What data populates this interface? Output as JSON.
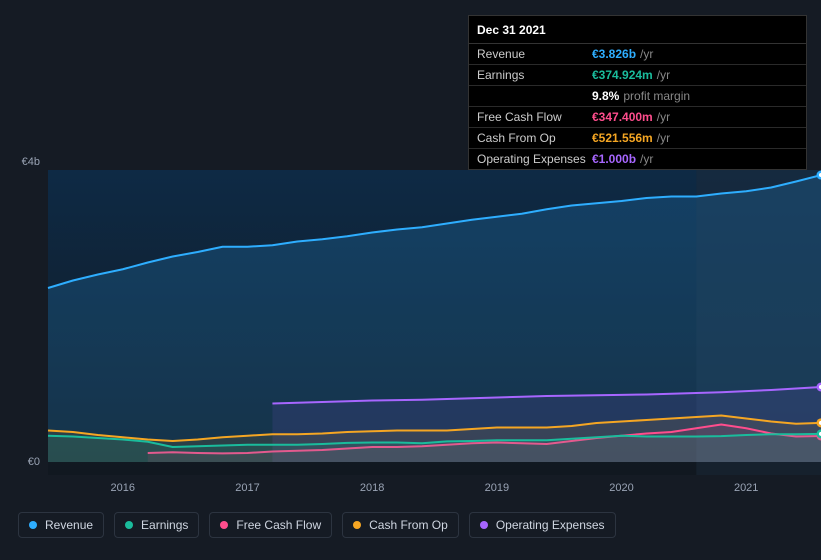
{
  "chart": {
    "type": "area-line",
    "background_color": "#151b24",
    "plot_background_gradient": [
      "#0e2a45",
      "#111820"
    ],
    "highlight_band_color": "#1c2a3a",
    "grid_color": "#242c38",
    "axis_label_color": "#9aa4b5",
    "axis_fontsize": 11,
    "x_categories": [
      "2016",
      "2017",
      "2018",
      "2019",
      "2020",
      "2021"
    ],
    "y_ticks": [
      {
        "value": 0,
        "label": "€0"
      },
      {
        "value": 4000,
        "label": "€4b"
      }
    ],
    "ylim": [
      0,
      4000
    ],
    "series": [
      {
        "name": "Revenue",
        "color": "#2eaeff",
        "fill_opacity": 0.18,
        "line_width": 2,
        "values": [
          2320,
          2420,
          2500,
          2570,
          2660,
          2740,
          2800,
          2870,
          2870,
          2890,
          2940,
          2970,
          3010,
          3060,
          3100,
          3130,
          3180,
          3230,
          3270,
          3310,
          3370,
          3420,
          3450,
          3480,
          3520,
          3540,
          3540,
          3580,
          3610,
          3660,
          3740,
          3826
        ]
      },
      {
        "name": "Earnings",
        "color": "#1abc9c",
        "fill_opacity": 0.12,
        "line_width": 2,
        "values": [
          350,
          340,
          320,
          300,
          270,
          200,
          210,
          220,
          230,
          230,
          230,
          240,
          255,
          260,
          260,
          250,
          275,
          280,
          290,
          290,
          290,
          310,
          330,
          350,
          340,
          340,
          340,
          345,
          360,
          370,
          370,
          375
        ]
      },
      {
        "name": "Free Cash Flow",
        "color": "#ff4d8d",
        "fill_opacity": 0.1,
        "line_width": 2,
        "start_index": 4,
        "values": [
          120,
          130,
          120,
          115,
          120,
          140,
          150,
          160,
          180,
          200,
          200,
          210,
          230,
          250,
          260,
          250,
          240,
          280,
          320,
          350,
          380,
          400,
          450,
          500,
          450,
          380,
          340,
          347
        ]
      },
      {
        "name": "Cash From Op",
        "color": "#f5a623",
        "fill_opacity": 0.1,
        "line_width": 2,
        "values": [
          420,
          400,
          360,
          330,
          300,
          280,
          300,
          330,
          350,
          370,
          370,
          380,
          400,
          410,
          420,
          420,
          420,
          440,
          460,
          460,
          460,
          480,
          520,
          540,
          560,
          580,
          600,
          620,
          580,
          540,
          510,
          522
        ]
      },
      {
        "name": "Operating Expenses",
        "color": "#a766ff",
        "fill_opacity": 0.1,
        "line_width": 2,
        "start_index": 9,
        "values": [
          780,
          790,
          800,
          810,
          820,
          825,
          830,
          840,
          850,
          860,
          870,
          880,
          885,
          890,
          895,
          900,
          910,
          920,
          930,
          945,
          960,
          980,
          1000
        ]
      }
    ]
  },
  "tooltip": {
    "date": "Dec 31 2021",
    "rows": [
      {
        "label": "Revenue",
        "value": "€3.826b",
        "unit": "/yr",
        "color": "#2eaeff"
      },
      {
        "label": "Earnings",
        "value": "€374.924m",
        "unit": "/yr",
        "color": "#1abc9c",
        "sub": {
          "value": "9.8%",
          "label": "profit margin"
        }
      },
      {
        "label": "Free Cash Flow",
        "value": "€347.400m",
        "unit": "/yr",
        "color": "#ff4d8d"
      },
      {
        "label": "Cash From Op",
        "value": "€521.556m",
        "unit": "/yr",
        "color": "#f5a623"
      },
      {
        "label": "Operating Expenses",
        "value": "€1.000b",
        "unit": "/yr",
        "color": "#a766ff"
      }
    ]
  },
  "legend": {
    "border_color": "#2c3440",
    "text_color": "#cfd6e1",
    "fontsize": 12,
    "items": [
      {
        "label": "Revenue",
        "color": "#2eaeff"
      },
      {
        "label": "Earnings",
        "color": "#1abc9c"
      },
      {
        "label": "Free Cash Flow",
        "color": "#ff4d8d"
      },
      {
        "label": "Cash From Op",
        "color": "#f5a623"
      },
      {
        "label": "Operating Expenses",
        "color": "#a766ff"
      }
    ]
  }
}
